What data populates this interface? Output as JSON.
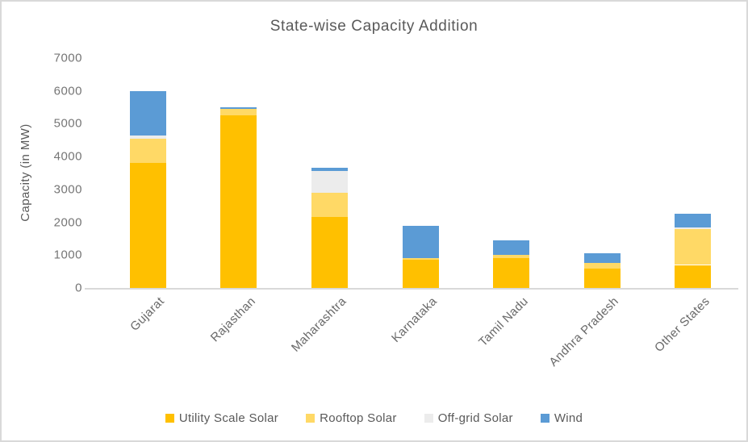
{
  "window": {
    "background": "#ffffff",
    "border_color": "#d9d9d9"
  },
  "chart_data": {
    "type": "bar",
    "stacked": true,
    "title": "State-wise Capacity Addition",
    "xlabel": "",
    "ylabel": "Capacity (in MW)",
    "ylim": [
      0,
      7000
    ],
    "y_ticks": [
      0,
      1000,
      2000,
      3000,
      4000,
      5000,
      6000,
      7000
    ],
    "grid": "off",
    "axis_line_color": "#d9d9d9",
    "legend_position": "bottom-center",
    "categories": [
      "Gujarat",
      "Rajasthan",
      "Maharashtra",
      "Karnataka",
      "Tamil Nadu",
      "Andhra Pradesh",
      "Other States"
    ],
    "series": [
      {
        "name": "Utility Scale Solar",
        "color": "#FFC000",
        "values": [
          3800,
          5250,
          2150,
          850,
          900,
          600,
          700
        ]
      },
      {
        "name": "Rooftop Solar",
        "color": "#FFD966",
        "values": [
          750,
          200,
          750,
          50,
          100,
          150,
          1100
        ]
      },
      {
        "name": "Off-grid Solar",
        "color": "#ECECEC",
        "values": [
          100,
          0,
          650,
          0,
          0,
          0,
          50
        ]
      },
      {
        "name": "Wind",
        "color": "#5B9BD5",
        "values": [
          1350,
          50,
          100,
          1000,
          450,
          300,
          400
        ]
      }
    ],
    "text_colors": {
      "title": "#595959",
      "axis_labels": "#757575",
      "legend_labels": "#595959"
    }
  }
}
